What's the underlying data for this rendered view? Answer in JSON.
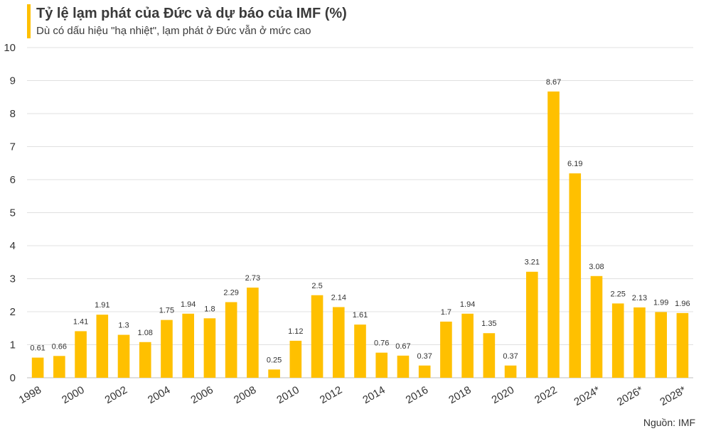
{
  "header": {
    "title": "Tỷ lệ lạm phát của Đức và dự báo của IMF (%)",
    "subtitle": "Dù có dấu hiệu \"hạ nhiệt\", lạm phát ở Đức vẫn ở mức cao"
  },
  "source": "Nguồn: IMF",
  "chart_data": {
    "type": "bar",
    "title": "Tỷ lệ lạm phát của Đức và dự báo của IMF (%)",
    "subtitle": "Dù có dấu hiệu \"hạ nhiệt\", lạm phát ở Đức vẫn ở mức cao",
    "xlabel": "",
    "ylabel": "",
    "ylim": [
      0,
      10
    ],
    "yticks": [
      0,
      1,
      2,
      3,
      4,
      5,
      6,
      7,
      8,
      9,
      10
    ],
    "grid": true,
    "bar_color": "#FFC000",
    "categories": [
      "1998",
      "1999",
      "2000",
      "2001",
      "2002",
      "2003",
      "2004",
      "2005",
      "2006",
      "2007",
      "2008",
      "2009",
      "2010",
      "2011",
      "2012",
      "2013",
      "2014",
      "2015",
      "2016",
      "2017",
      "2018",
      "2019",
      "2020",
      "2021",
      "2022",
      "2023",
      "2024*",
      "2025*",
      "2026*",
      "2027*",
      "2028*"
    ],
    "tick_labels_shown": [
      "1998",
      "2000",
      "2002",
      "2004",
      "2006",
      "2008",
      "2010",
      "2012",
      "2014",
      "2016",
      "2018",
      "2020",
      "2022",
      "2024*",
      "2026*",
      "2028*"
    ],
    "values": [
      0.61,
      0.66,
      1.41,
      1.91,
      1.3,
      1.08,
      1.75,
      1.94,
      1.8,
      2.29,
      2.73,
      0.25,
      1.12,
      2.5,
      2.14,
      1.61,
      0.76,
      0.67,
      0.37,
      1.7,
      1.94,
      1.35,
      0.37,
      3.21,
      8.67,
      6.19,
      3.08,
      2.25,
      2.13,
      1.99,
      1.96
    ],
    "value_labels": [
      "0.61",
      "0.66",
      "1.41",
      "1.91",
      "1.3",
      "1.08",
      "1.75",
      "1.94",
      "1.8",
      "2.29",
      "2.73",
      "0.25",
      "1.12",
      "2.5",
      "2.14",
      "1.61",
      "0.76",
      "0.67",
      "0.37",
      "1.7",
      "1.94",
      "1.35",
      "0.37",
      "3.21",
      "8.67",
      "6.19",
      "3.08",
      "2.25",
      "2.13",
      "1.99",
      "1.96"
    ]
  }
}
